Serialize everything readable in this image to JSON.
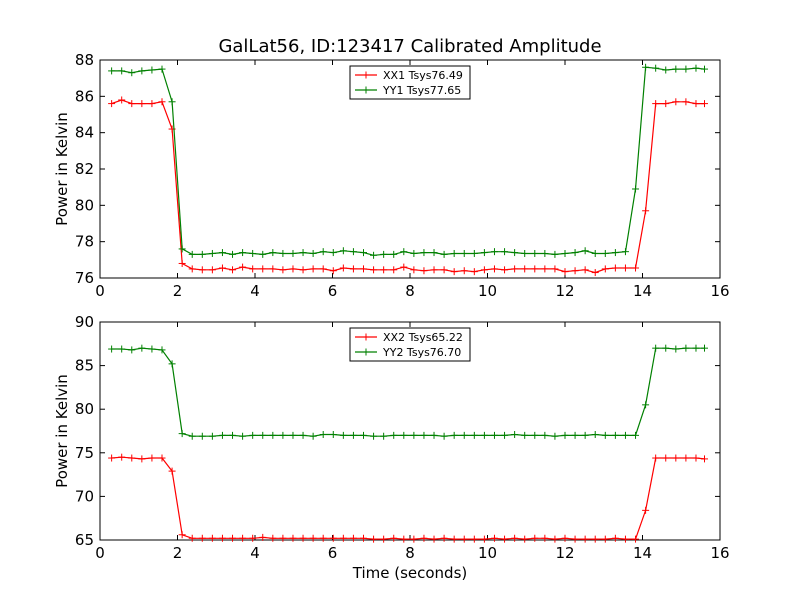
{
  "figure": {
    "title": "GalLat56, ID:123417 Calibrated Amplitude"
  },
  "chart_data": [
    {
      "type": "line",
      "ylabel": "Power in Kelvin",
      "xlabel": "",
      "xlim": [
        0,
        16
      ],
      "ylim": [
        76,
        88
      ],
      "xticks": [
        0,
        2,
        4,
        6,
        8,
        10,
        12,
        14,
        16
      ],
      "yticks": [
        76,
        78,
        80,
        82,
        84,
        86,
        88
      ],
      "legend_position": "top-center",
      "x": [
        0.3,
        0.56,
        0.82,
        1.08,
        1.34,
        1.6,
        1.86,
        2.12,
        2.38,
        2.64,
        2.9,
        3.16,
        3.42,
        3.68,
        3.94,
        4.2,
        4.46,
        4.72,
        4.98,
        5.24,
        5.5,
        5.76,
        6.02,
        6.28,
        6.54,
        6.8,
        7.06,
        7.32,
        7.58,
        7.84,
        8.1,
        8.36,
        8.62,
        8.88,
        9.14,
        9.4,
        9.66,
        9.92,
        10.18,
        10.44,
        10.7,
        10.96,
        11.22,
        11.48,
        11.74,
        12.0,
        12.26,
        12.52,
        12.78,
        13.04,
        13.3,
        13.56,
        13.82,
        14.08,
        14.34,
        14.6,
        14.86,
        15.12,
        15.38,
        15.6
      ],
      "series": [
        {
          "name": "XX1 Tsys76.49",
          "color": "#ff0000",
          "values": [
            85.6,
            85.8,
            85.6,
            85.6,
            85.6,
            85.7,
            84.2,
            76.8,
            76.5,
            76.45,
            76.45,
            76.55,
            76.45,
            76.6,
            76.5,
            76.5,
            76.5,
            76.45,
            76.5,
            76.45,
            76.5,
            76.5,
            76.4,
            76.55,
            76.5,
            76.5,
            76.45,
            76.45,
            76.45,
            76.6,
            76.45,
            76.4,
            76.45,
            76.45,
            76.35,
            76.4,
            76.35,
            76.45,
            76.5,
            76.45,
            76.5,
            76.5,
            76.5,
            76.5,
            76.5,
            76.35,
            76.4,
            76.45,
            76.3,
            76.5,
            76.55,
            76.55,
            76.55,
            79.7,
            85.6,
            85.6,
            85.7,
            85.7,
            85.6,
            85.6
          ]
        },
        {
          "name": "YY1 Tsys77.65",
          "color": "#008000",
          "values": [
            87.4,
            87.4,
            87.3,
            87.4,
            87.45,
            87.5,
            85.7,
            77.6,
            77.3,
            77.3,
            77.35,
            77.4,
            77.3,
            77.4,
            77.35,
            77.3,
            77.4,
            77.35,
            77.35,
            77.4,
            77.35,
            77.45,
            77.4,
            77.5,
            77.45,
            77.4,
            77.25,
            77.3,
            77.3,
            77.45,
            77.35,
            77.4,
            77.4,
            77.3,
            77.35,
            77.35,
            77.35,
            77.4,
            77.45,
            77.45,
            77.4,
            77.35,
            77.35,
            77.35,
            77.3,
            77.35,
            77.4,
            77.5,
            77.35,
            77.35,
            77.4,
            77.45,
            80.9,
            87.6,
            87.55,
            87.45,
            87.5,
            87.5,
            87.55,
            87.5
          ]
        }
      ]
    },
    {
      "type": "line",
      "ylabel": "Power in Kelvin",
      "xlabel": "Time (seconds)",
      "xlim": [
        0,
        16
      ],
      "ylim": [
        65,
        90
      ],
      "xticks": [
        0,
        2,
        4,
        6,
        8,
        10,
        12,
        14,
        16
      ],
      "yticks": [
        65,
        70,
        75,
        80,
        85,
        90
      ],
      "legend_position": "top-center",
      "x": [
        0.3,
        0.56,
        0.82,
        1.08,
        1.34,
        1.6,
        1.86,
        2.12,
        2.38,
        2.64,
        2.9,
        3.16,
        3.42,
        3.68,
        3.94,
        4.2,
        4.46,
        4.72,
        4.98,
        5.24,
        5.5,
        5.76,
        6.02,
        6.28,
        6.54,
        6.8,
        7.06,
        7.32,
        7.58,
        7.84,
        8.1,
        8.36,
        8.62,
        8.88,
        9.14,
        9.4,
        9.66,
        9.92,
        10.18,
        10.44,
        10.7,
        10.96,
        11.22,
        11.48,
        11.74,
        12.0,
        12.26,
        12.52,
        12.78,
        13.04,
        13.3,
        13.56,
        13.82,
        14.08,
        14.34,
        14.6,
        14.86,
        15.12,
        15.38,
        15.6
      ],
      "series": [
        {
          "name": "XX2 Tsys65.22",
          "color": "#ff0000",
          "values": [
            74.4,
            74.5,
            74.4,
            74.3,
            74.4,
            74.4,
            72.9,
            65.6,
            65.2,
            65.2,
            65.2,
            65.2,
            65.2,
            65.2,
            65.2,
            65.3,
            65.2,
            65.2,
            65.2,
            65.2,
            65.2,
            65.2,
            65.2,
            65.2,
            65.2,
            65.2,
            65.1,
            65.1,
            65.2,
            65.1,
            65.1,
            65.2,
            65.1,
            65.2,
            65.1,
            65.1,
            65.1,
            65.1,
            65.2,
            65.1,
            65.2,
            65.1,
            65.2,
            65.2,
            65.1,
            65.2,
            65.1,
            65.1,
            65.1,
            65.1,
            65.2,
            65.1,
            65.1,
            68.4,
            74.4,
            74.4,
            74.4,
            74.4,
            74.4,
            74.3
          ]
        },
        {
          "name": "YY2 Tsys76.70",
          "color": "#008000",
          "values": [
            86.9,
            86.9,
            86.8,
            87.0,
            86.9,
            86.8,
            85.2,
            77.2,
            76.9,
            76.9,
            76.9,
            77.0,
            77.0,
            76.9,
            77.0,
            77.0,
            77.0,
            77.0,
            77.0,
            77.0,
            76.9,
            77.1,
            77.1,
            77.0,
            77.0,
            77.0,
            76.9,
            76.9,
            77.0,
            77.0,
            77.0,
            77.0,
            77.0,
            76.9,
            77.0,
            77.0,
            77.0,
            77.0,
            77.0,
            77.0,
            77.1,
            77.0,
            77.0,
            77.0,
            76.9,
            77.0,
            77.0,
            77.0,
            77.1,
            77.0,
            77.0,
            77.0,
            77.0,
            80.5,
            87.0,
            87.0,
            86.9,
            87.0,
            87.0,
            87.0
          ]
        }
      ]
    }
  ]
}
